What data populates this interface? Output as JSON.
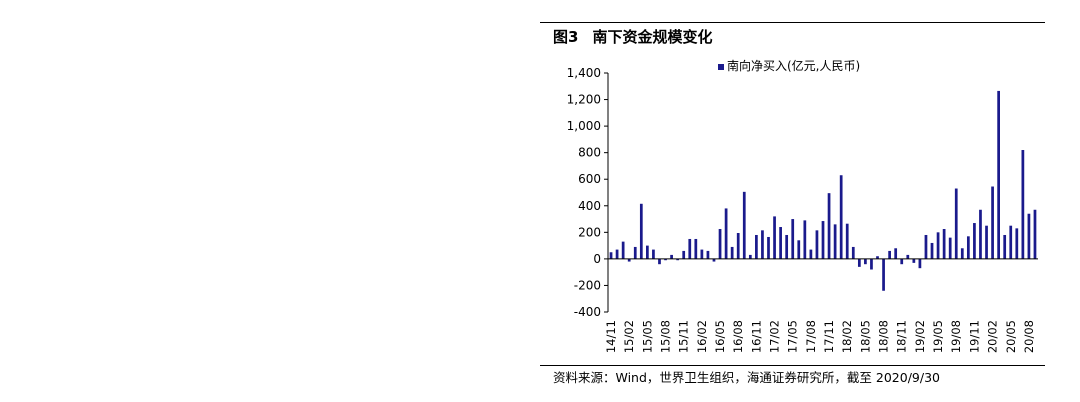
{
  "figure": {
    "number": "图3",
    "title": "南下资金规模变化",
    "source": "资料来源：Wind，世界卫生组织，海通证券研究所，截至 2020/9/30"
  },
  "chart_data": {
    "type": "bar",
    "series": [
      {
        "name": "南向净买入(亿元,人民币)",
        "color": "#1a1a8c",
        "values": [
          50,
          70,
          130,
          -20,
          90,
          415,
          100,
          70,
          -40,
          -10,
          30,
          -10,
          60,
          150,
          150,
          70,
          60,
          -20,
          225,
          380,
          90,
          195,
          505,
          30,
          180,
          215,
          165,
          320,
          240,
          180,
          300,
          140,
          290,
          70,
          215,
          285,
          495,
          260,
          630,
          265,
          90,
          -60,
          -40,
          -80,
          20,
          -240,
          60,
          80,
          -40,
          30,
          -30,
          -70,
          180,
          120,
          200,
          225,
          160,
          530,
          80,
          170,
          270,
          370,
          250,
          545,
          1265,
          180,
          250,
          230,
          820,
          340,
          370
        ]
      }
    ],
    "categories": [
      "14/11",
      "14/12",
      "15/01",
      "15/02",
      "15/03",
      "15/04",
      "15/05",
      "15/06",
      "15/07",
      "15/08",
      "15/09",
      "15/10",
      "15/11",
      "15/12",
      "16/01",
      "16/02",
      "16/03",
      "16/04",
      "16/05",
      "16/06",
      "16/07",
      "16/08",
      "16/09",
      "16/10",
      "16/11",
      "16/12",
      "17/01",
      "17/02",
      "17/03",
      "17/04",
      "17/05",
      "17/06",
      "17/07",
      "17/08",
      "17/09",
      "17/10",
      "17/11",
      "17/12",
      "18/01",
      "18/02",
      "18/03",
      "18/04",
      "18/05",
      "18/06",
      "18/07",
      "18/08",
      "18/09",
      "18/10",
      "18/11",
      "18/12",
      "19/01",
      "19/02",
      "19/03",
      "19/04",
      "19/05",
      "19/06",
      "19/07",
      "19/08",
      "19/09",
      "19/10",
      "19/11",
      "19/12",
      "20/01",
      "20/02",
      "20/03",
      "20/04",
      "20/05",
      "20/06",
      "20/07",
      "20/08",
      "20/09"
    ],
    "shown_xticks": [
      "14/11",
      "15/02",
      "15/05",
      "15/08",
      "15/11",
      "16/02",
      "16/05",
      "16/08",
      "16/11",
      "17/02",
      "17/05",
      "17/08",
      "17/11",
      "18/02",
      "18/05",
      "18/08",
      "18/11",
      "19/02",
      "19/05",
      "19/08",
      "19/11",
      "20/02",
      "20/05",
      "20/08"
    ],
    "yticks": [
      "1,400",
      "1,200",
      "1,000",
      "800",
      "600",
      "400",
      "200",
      "0",
      "-200",
      "-400"
    ],
    "ylim": [
      -400,
      1400
    ],
    "grid": false,
    "legend_position": "top-center"
  }
}
